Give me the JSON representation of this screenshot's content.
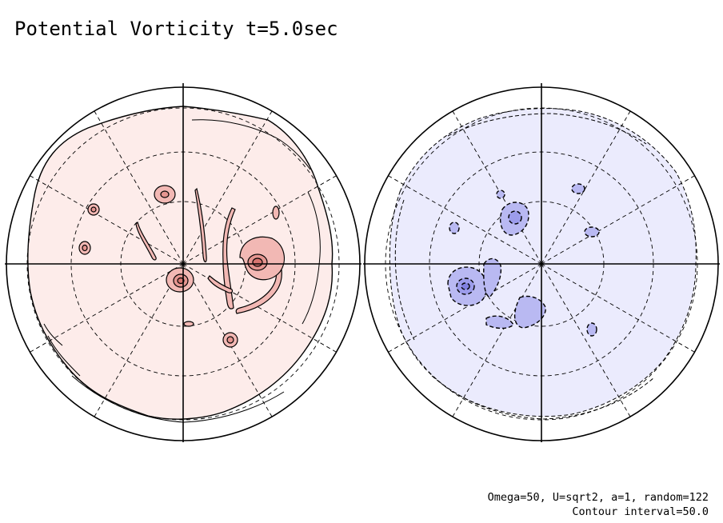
{
  "title": "Potential Vorticity t=5.0sec",
  "footer": {
    "params": "Omega=50, U=sqrt2, a=1, random=122",
    "contour_interval": "Contour interval=50.0"
  },
  "colors": {
    "north_fill": "#fdecea",
    "north_vortex_fill": "#f2b8b4",
    "south_fill": "#ebebfd",
    "south_vortex_fill": "#b9b9f2",
    "line": "#000000"
  },
  "hemispheres": [
    {
      "id": "north",
      "sign": "positive",
      "vortices": [
        {
          "lon": 0,
          "colat": 0.06
        },
        {
          "lon": 25,
          "colat": 0.46
        },
        {
          "lon": 120,
          "colat": 0.48
        },
        {
          "lon": 150,
          "colat": 0.56
        },
        {
          "lon": 175,
          "colat": 0.56
        },
        {
          "lon": -85,
          "colat": 0.45
        }
      ]
    },
    {
      "id": "south",
      "sign": "negative",
      "vortices": [
        {
          "lon": 160,
          "colat": 0.47
        },
        {
          "lon": 95,
          "colat": 0.5
        },
        {
          "lon": 5,
          "colat": 0.22
        },
        {
          "lon": 80,
          "colat": 0.36
        },
        {
          "lon": 30,
          "colat": 0.38
        }
      ]
    }
  ]
}
